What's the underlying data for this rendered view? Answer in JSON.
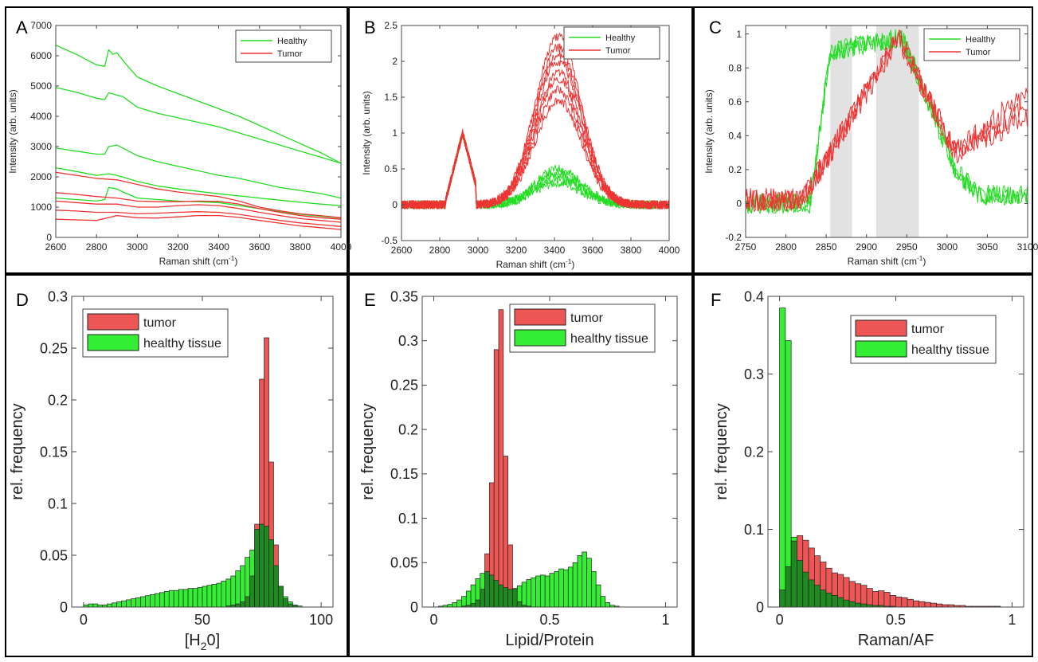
{
  "chart_data": [
    {
      "panel": "A",
      "type": "line",
      "xlabel": "Raman shift (cm",
      "xlabel_sup": "-1",
      "xlabel_end": ")",
      "ylabel": "Intensity (arb. units)",
      "xlim": [
        2600,
        4000
      ],
      "ylim": [
        0,
        7000
      ],
      "xticks": [
        2600,
        2800,
        3000,
        3200,
        3400,
        3600,
        3800,
        4000
      ],
      "yticks": [
        0,
        1000,
        2000,
        3000,
        4000,
        5000,
        6000,
        7000
      ],
      "legend": [
        "Healthy",
        "Tumor"
      ],
      "legend_position": "top-right",
      "colors": {
        "healthy": "#22dd22",
        "tumor": "#ee3333"
      },
      "series": [
        {
          "group": "healthy",
          "x": [
            2600,
            2700,
            2800,
            2840,
            2860,
            2880,
            2900,
            2930,
            2960,
            3000,
            3100,
            3200,
            3300,
            3400,
            3500,
            3600,
            3700,
            3800,
            3900,
            4000
          ],
          "y": [
            6350,
            6050,
            5700,
            5650,
            6200,
            6050,
            6100,
            5850,
            5600,
            5300,
            5000,
            4750,
            4500,
            4250,
            4000,
            3700,
            3400,
            3100,
            2800,
            2450
          ]
        },
        {
          "group": "healthy",
          "x": [
            2600,
            2700,
            2800,
            2840,
            2860,
            2900,
            2930,
            3000,
            3100,
            3200,
            3300,
            3400,
            3500,
            3600,
            3700,
            3800,
            3900,
            4000
          ],
          "y": [
            4950,
            4800,
            4600,
            4550,
            4780,
            4700,
            4650,
            4300,
            4100,
            3950,
            3800,
            3650,
            3450,
            3250,
            3050,
            2850,
            2650,
            2450
          ]
        },
        {
          "group": "healthy",
          "x": [
            2600,
            2700,
            2800,
            2840,
            2860,
            2900,
            2930,
            3000,
            3100,
            3200,
            3300,
            3400,
            3500,
            3600,
            3700,
            3800,
            3900,
            4000
          ],
          "y": [
            2950,
            2850,
            2750,
            2750,
            3000,
            3050,
            2950,
            2700,
            2500,
            2350,
            2200,
            2050,
            1950,
            1800,
            1650,
            1550,
            1450,
            1300
          ]
        },
        {
          "group": "healthy",
          "x": [
            2600,
            2700,
            2800,
            2860,
            2900,
            2950,
            3000,
            3100,
            3200,
            3300,
            3400,
            3500,
            3600,
            3700,
            3800,
            3900,
            4000
          ],
          "y": [
            2300,
            2180,
            2050,
            2100,
            2050,
            1950,
            1850,
            1700,
            1600,
            1520,
            1440,
            1370,
            1300,
            1230,
            1160,
            1100,
            1050
          ]
        },
        {
          "group": "healthy",
          "x": [
            2600,
            2700,
            2800,
            2840,
            2860,
            2900,
            2930,
            3000,
            3100,
            3200,
            3300,
            3400,
            3500,
            3600,
            3700,
            3800,
            3900,
            4000
          ],
          "y": [
            1300,
            1250,
            1200,
            1250,
            1650,
            1600,
            1500,
            1300,
            1250,
            1200,
            1180,
            1150,
            1050,
            950,
            850,
            760,
            700,
            640
          ]
        },
        {
          "group": "tumor",
          "x": [
            2600,
            2700,
            2800,
            2900,
            3000,
            3100,
            3200,
            3300,
            3400,
            3500,
            3600,
            3700,
            3800,
            3900,
            4000
          ],
          "y": [
            2150,
            2050,
            1950,
            1900,
            1750,
            1600,
            1500,
            1420,
            1350,
            1200,
            1000,
            880,
            780,
            720,
            650
          ]
        },
        {
          "group": "tumor",
          "x": [
            2600,
            2700,
            2800,
            2900,
            3000,
            3100,
            3200,
            3300,
            3400,
            3500,
            3600,
            3700,
            3800,
            3900,
            4000
          ],
          "y": [
            1480,
            1420,
            1350,
            1300,
            1200,
            1180,
            1180,
            1200,
            1190,
            1100,
            950,
            830,
            720,
            650,
            600
          ]
        },
        {
          "group": "tumor",
          "x": [
            2600,
            2700,
            2800,
            2900,
            3000,
            3100,
            3200,
            3300,
            3400,
            3500,
            3600,
            3700,
            3800,
            3900,
            4000
          ],
          "y": [
            1200,
            1150,
            1100,
            1100,
            1000,
            1000,
            1050,
            1080,
            1050,
            950,
            830,
            720,
            620,
            560,
            500
          ]
        },
        {
          "group": "tumor",
          "x": [
            2600,
            2700,
            2800,
            2900,
            3000,
            3100,
            3200,
            3300,
            3400,
            3500,
            3600,
            3700,
            3800,
            3900,
            4000
          ],
          "y": [
            900,
            870,
            830,
            830,
            780,
            800,
            830,
            850,
            830,
            760,
            660,
            560,
            480,
            420,
            360
          ]
        },
        {
          "group": "tumor",
          "x": [
            2600,
            2700,
            2800,
            2900,
            3000,
            3100,
            3200,
            3300,
            3400,
            3500,
            3600,
            3700,
            3800,
            3900,
            4000
          ],
          "y": [
            600,
            580,
            560,
            720,
            650,
            640,
            680,
            720,
            720,
            660,
            560,
            470,
            380,
            320,
            260
          ]
        }
      ]
    },
    {
      "panel": "B",
      "type": "line",
      "xlabel": "Raman shift (cm",
      "xlabel_sup": "-1",
      "xlabel_end": ")",
      "ylabel": "Intensity (arb. units)",
      "xlim": [
        2600,
        4000
      ],
      "ylim": [
        -0.5,
        2.5
      ],
      "xticks": [
        2600,
        2800,
        3000,
        3200,
        3400,
        3600,
        3800,
        4000
      ],
      "yticks": [
        -0.5,
        0,
        0.5,
        1,
        1.5,
        2,
        2.5
      ],
      "legend": [
        "Healthy",
        "Tumor"
      ],
      "legend_position": "top-right",
      "colors": {
        "healthy": "#22dd22",
        "tumor": "#ee3333"
      },
      "healthy_peaks": [
        0.3,
        0.35,
        0.4,
        0.45,
        0.5
      ],
      "tumor_peaks": [
        1.45,
        1.6,
        1.75,
        1.85,
        2.0,
        2.1,
        2.2,
        2.35
      ]
    },
    {
      "panel": "C",
      "type": "line",
      "xlabel": "Raman shift (cm",
      "xlabel_sup": "-1",
      "xlabel_end": ")",
      "ylabel": "Intensity (arb. units)",
      "xlim": [
        2750,
        3100
      ],
      "ylim": [
        -0.2,
        1.05
      ],
      "xticks": [
        2750,
        2800,
        2850,
        2900,
        2950,
        3000,
        3050,
        3100
      ],
      "yticks": [
        -0.2,
        0,
        0.2,
        0.4,
        0.6,
        0.8,
        1
      ],
      "shaded_bands": [
        [
          2855,
          2882
        ],
        [
          2912,
          2965
        ]
      ],
      "legend": [
        "Healthy",
        "Tumor"
      ],
      "legend_position": "top-right",
      "colors": {
        "healthy": "#22dd22",
        "tumor": "#ee3333",
        "band": "#e2e2e2"
      }
    },
    {
      "panel": "D",
      "type": "bar",
      "xlabel": "[H",
      "xlabel_sub": "2",
      "xlabel_end": "0]",
      "ylabel": "rel. frequency",
      "xlim": [
        -5,
        105
      ],
      "ylim": [
        0,
        0.3
      ],
      "xticks": [
        0,
        50,
        100
      ],
      "yticks": [
        0,
        0.05,
        0.1,
        0.15,
        0.2,
        0.25,
        0.3
      ],
      "bin_start": 0,
      "bin_width": 2,
      "legend": [
        "tumor",
        "healthy tissue"
      ],
      "legend_position": "top-left",
      "colors": {
        "tumor": "#ee5555",
        "healthy": "#33ee33",
        "overlap": "#1f8a1f"
      },
      "tumor": [
        0,
        0,
        0,
        0,
        0,
        0,
        0,
        0,
        0,
        0,
        0,
        0,
        0,
        0,
        0,
        0,
        0,
        0,
        0,
        0,
        0,
        0,
        0,
        0,
        0,
        0,
        0,
        0,
        0,
        0,
        0.001,
        0.002,
        0.003,
        0.005,
        0.01,
        0.03,
        0.08,
        0.22,
        0.26,
        0.14,
        0.06,
        0.02,
        0.008,
        0.003,
        0.001,
        0,
        0,
        0,
        0,
        0
      ],
      "healthy": [
        0.002,
        0.003,
        0.003,
        0.002,
        0.002,
        0.003,
        0.004,
        0.005,
        0.006,
        0.007,
        0.008,
        0.009,
        0.01,
        0.011,
        0.012,
        0.013,
        0.014,
        0.015,
        0.016,
        0.016,
        0.017,
        0.017,
        0.018,
        0.018,
        0.019,
        0.02,
        0.021,
        0.022,
        0.023,
        0.025,
        0.027,
        0.03,
        0.035,
        0.04,
        0.048,
        0.055,
        0.075,
        0.08,
        0.078,
        0.065,
        0.04,
        0.02,
        0.01,
        0.005,
        0.002,
        0.001,
        0,
        0,
        0,
        0
      ]
    },
    {
      "panel": "E",
      "type": "bar",
      "xlabel": "Lipid/Protein",
      "ylabel": "rel. frequency",
      "xlim": [
        -0.05,
        1.05
      ],
      "ylim": [
        0,
        0.35
      ],
      "xticks": [
        0,
        0.5,
        1
      ],
      "yticks": [
        0,
        0.05,
        0.1,
        0.15,
        0.2,
        0.25,
        0.3,
        0.35
      ],
      "bin_start": 0,
      "bin_width": 0.02,
      "legend": [
        "tumor",
        "healthy tissue"
      ],
      "legend_position": "top-right",
      "colors": {
        "tumor": "#ee5555",
        "healthy": "#33ee33",
        "overlap": "#1f8a1f"
      },
      "tumor": [
        0,
        0,
        0,
        0,
        0,
        0,
        0.001,
        0.002,
        0.004,
        0.008,
        0.02,
        0.06,
        0.14,
        0.29,
        0.335,
        0.17,
        0.07,
        0.02,
        0.006,
        0.002,
        0.001,
        0,
        0,
        0,
        0,
        0,
        0,
        0,
        0,
        0,
        0,
        0,
        0,
        0,
        0,
        0,
        0,
        0,
        0,
        0,
        0,
        0,
        0,
        0,
        0,
        0,
        0,
        0,
        0,
        0
      ],
      "healthy": [
        0,
        0.001,
        0.002,
        0.003,
        0.005,
        0.008,
        0.012,
        0.018,
        0.025,
        0.032,
        0.038,
        0.04,
        0.036,
        0.03,
        0.025,
        0.022,
        0.02,
        0.021,
        0.024,
        0.028,
        0.031,
        0.033,
        0.035,
        0.036,
        0.035,
        0.038,
        0.04,
        0.043,
        0.042,
        0.045,
        0.05,
        0.058,
        0.062,
        0.055,
        0.04,
        0.025,
        0.012,
        0.005,
        0.002,
        0.001,
        0,
        0,
        0,
        0,
        0,
        0,
        0,
        0,
        0,
        0
      ]
    },
    {
      "panel": "F",
      "type": "bar",
      "xlabel": "Raman/AF",
      "ylabel": "rel. frequency",
      "xlim": [
        -0.05,
        1.05
      ],
      "ylim": [
        0,
        0.4
      ],
      "xticks": [
        0,
        0.5,
        1
      ],
      "yticks": [
        0,
        0.1,
        0.2,
        0.3,
        0.4
      ],
      "bin_start": 0,
      "bin_width": 0.025,
      "legend": [
        "tumor",
        "healthy tissue"
      ],
      "legend_position": "top-right",
      "colors": {
        "tumor": "#ee5555",
        "healthy": "#33ee33",
        "overlap": "#1f8a1f"
      },
      "tumor": [
        0.022,
        0.052,
        0.085,
        0.092,
        0.086,
        0.076,
        0.066,
        0.058,
        0.05,
        0.044,
        0.042,
        0.038,
        0.033,
        0.03,
        0.028,
        0.024,
        0.02,
        0.021,
        0.019,
        0.015,
        0.013,
        0.012,
        0.01,
        0.008,
        0.007,
        0.006,
        0.005,
        0.004,
        0.003,
        0.003,
        0.002,
        0.002,
        0.001,
        0.001,
        0.001,
        0.001,
        0.001,
        0.001,
        0,
        0
      ],
      "healthy": [
        0.385,
        0.343,
        0.09,
        0.06,
        0.045,
        0.035,
        0.028,
        0.022,
        0.018,
        0.015,
        0.012,
        0.009,
        0.007,
        0.005,
        0.004,
        0.003,
        0.002,
        0.002,
        0.001,
        0.001,
        0,
        0,
        0,
        0,
        0,
        0,
        0,
        0,
        0,
        0,
        0,
        0,
        0,
        0,
        0,
        0,
        0,
        0,
        0,
        0
      ]
    }
  ]
}
